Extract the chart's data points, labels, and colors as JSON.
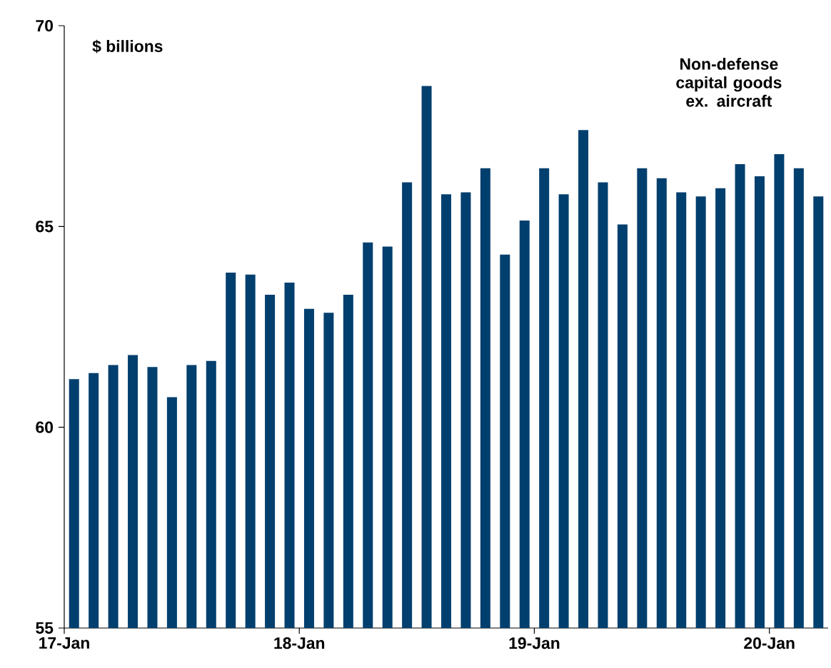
{
  "chart_data": {
    "type": "bar",
    "ylabel": "$ billions",
    "categories": [
      "17-Jan",
      null,
      null,
      null,
      null,
      null,
      null,
      null,
      null,
      null,
      null,
      null,
      "18-Jan",
      null,
      null,
      null,
      null,
      null,
      null,
      null,
      null,
      null,
      null,
      null,
      "19-Jan",
      null,
      null,
      null,
      null,
      null,
      null,
      null,
      null,
      null,
      null,
      null,
      "20-Jan",
      null,
      null
    ],
    "series": [
      {
        "name": "Non-defense capital goods ex. aircraft",
        "color": "#003f6e",
        "values": [
          61.2,
          61.35,
          61.55,
          61.8,
          61.5,
          60.75,
          61.55,
          61.65,
          63.85,
          63.8,
          63.3,
          63.6,
          62.95,
          62.85,
          63.3,
          64.6,
          64.5,
          66.1,
          68.5,
          65.8,
          65.85,
          66.45,
          64.3,
          65.15,
          66.45,
          65.8,
          67.4,
          66.1,
          65.05,
          66.45,
          66.2,
          65.85,
          65.75,
          65.95,
          66.55,
          66.25,
          66.8,
          66.45,
          65.75
        ]
      }
    ],
    "ylim": [
      55,
      70
    ],
    "yticks": [
      55,
      60,
      65,
      70
    ]
  }
}
